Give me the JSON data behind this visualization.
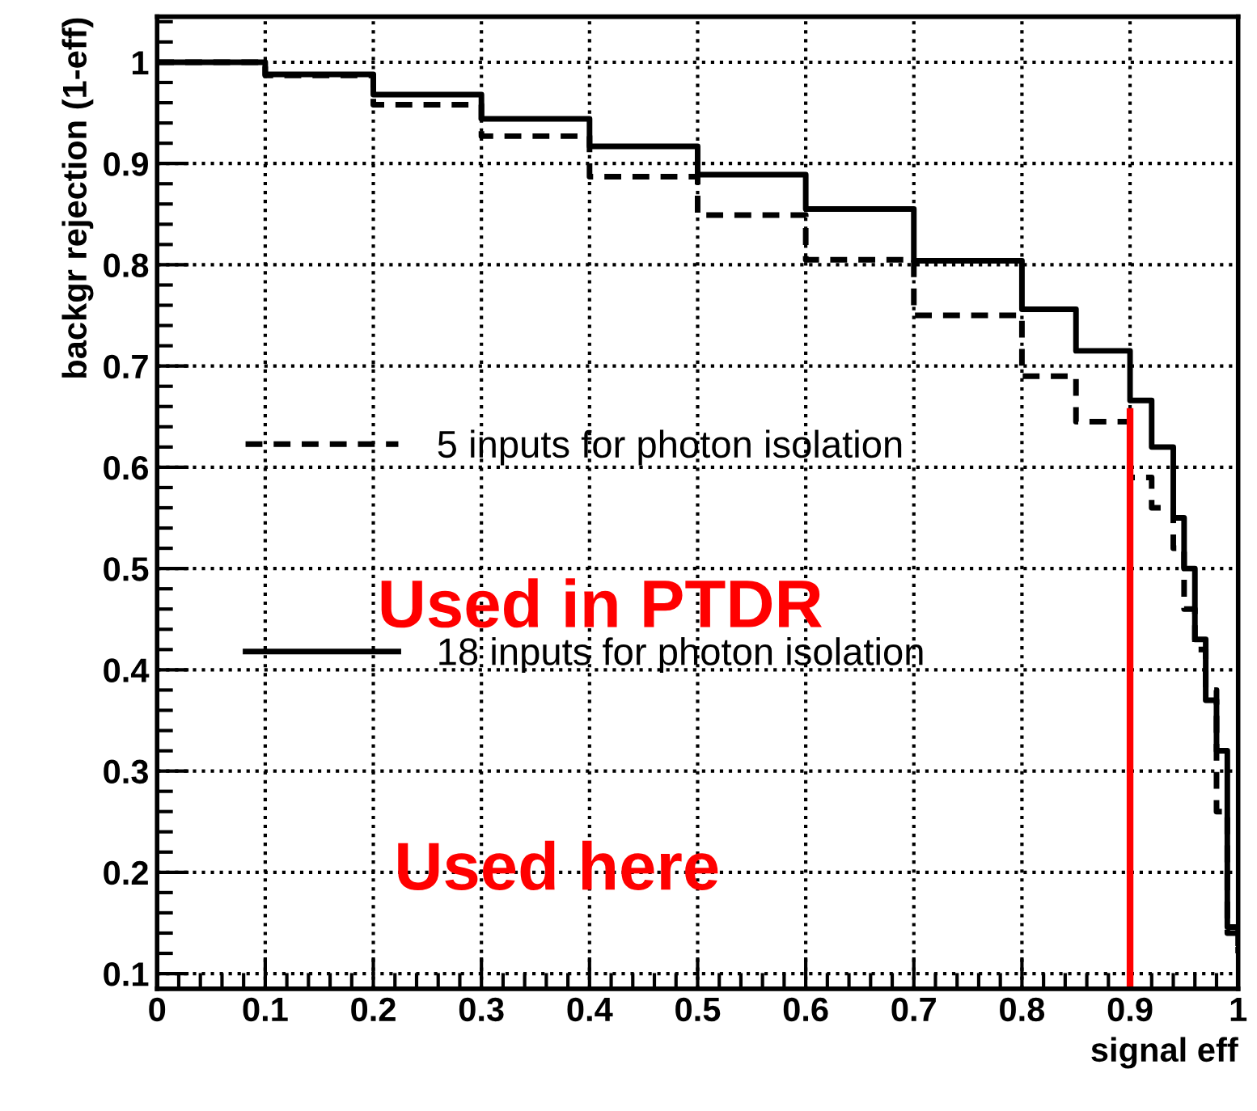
{
  "chart_data": {
    "type": "step",
    "xlabel": "signal eff",
    "ylabel": "backgr rejection (1-eff)",
    "xlim": [
      0,
      1
    ],
    "ylim": [
      0.085,
      1.045
    ],
    "xticks": [
      0,
      0.1,
      0.2,
      0.3,
      0.4,
      0.5,
      0.6,
      0.7,
      0.8,
      0.9,
      1
    ],
    "yticks": [
      0.1,
      0.2,
      0.3,
      0.4,
      0.5,
      0.6,
      0.7,
      0.8,
      0.9,
      1
    ],
    "grid": true,
    "legend": "center left",
    "series": [
      {
        "name": "5 inputs for photon isolation",
        "color": "#000000",
        "line_style": "dashed",
        "x": [
          0,
          0.1,
          0.2,
          0.3,
          0.4,
          0.5,
          0.6,
          0.7,
          0.8,
          0.85,
          0.9,
          0.92,
          0.94,
          0.95,
          0.96,
          0.97,
          0.98,
          0.99,
          1.0
        ],
        "values": [
          1.0,
          0.987,
          0.958,
          0.927,
          0.887,
          0.849,
          0.805,
          0.75,
          0.69,
          0.645,
          0.59,
          0.56,
          0.52,
          0.46,
          0.42,
          0.38,
          0.26,
          0.14,
          0.12
        ]
      },
      {
        "name": "18 inputs for photon isolation",
        "color": "#000000",
        "line_style": "solid",
        "x": [
          0,
          0.1,
          0.2,
          0.3,
          0.4,
          0.5,
          0.6,
          0.7,
          0.8,
          0.85,
          0.9,
          0.92,
          0.94,
          0.95,
          0.96,
          0.97,
          0.98,
          0.99,
          1.0
        ],
        "values": [
          1.0,
          0.988,
          0.968,
          0.944,
          0.917,
          0.889,
          0.855,
          0.804,
          0.756,
          0.715,
          0.666,
          0.62,
          0.55,
          0.5,
          0.43,
          0.37,
          0.32,
          0.146,
          0.13
        ]
      },
      {
        "type": "line",
        "color": "#ff0000",
        "line_style": "solid",
        "x": [
          0.9,
          0.9
        ],
        "values": [
          0.085,
          0.655
        ]
      }
    ],
    "annotations": [
      "Used in PTDR",
      "Used here"
    ]
  }
}
